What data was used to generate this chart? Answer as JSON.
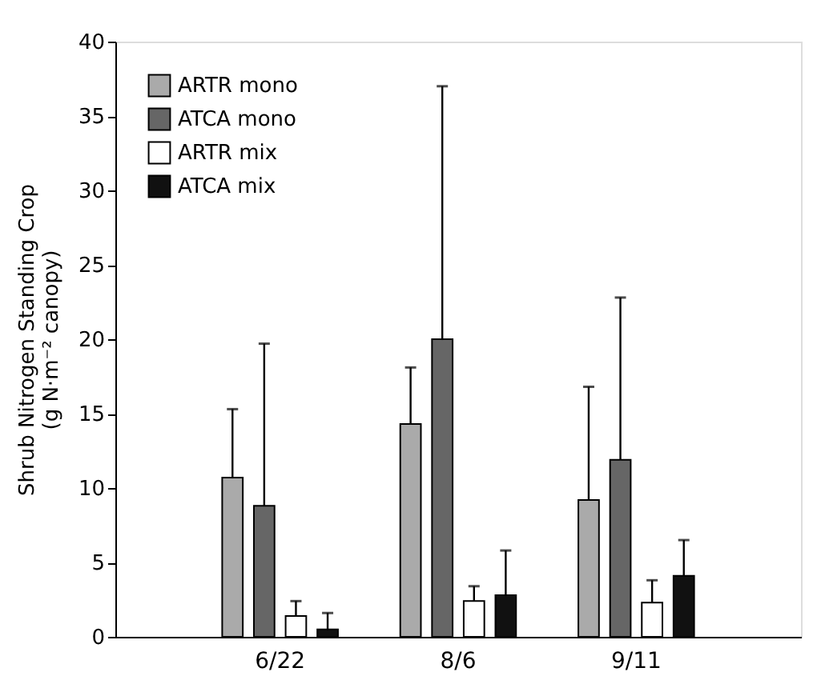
{
  "chart_data": {
    "type": "bar",
    "ylabel": "Shrub Nitrogen Standing Crop\n(g N·m⁻² canopy)",
    "categories": [
      "6/22",
      "8/6",
      "9/11"
    ],
    "series": [
      {
        "name": "ARTR mono",
        "color": "#aaaaaa",
        "values": [
          10.7,
          14.3,
          9.2
        ],
        "errors": [
          [
            10.7,
            15.3
          ],
          [
            14.3,
            18.1
          ],
          [
            9.2,
            16.8
          ]
        ]
      },
      {
        "name": "ATCA mono",
        "color": "#666666",
        "values": [
          8.8,
          20.0,
          11.9
        ],
        "errors": [
          [
            8.8,
            19.7
          ],
          [
            20.0,
            37.0
          ],
          [
            11.9,
            22.8
          ]
        ]
      },
      {
        "name": "ARTR mix",
        "color": "#ffffff",
        "values": [
          1.4,
          2.4,
          2.3
        ],
        "errors": [
          [
            1.4,
            2.4
          ],
          [
            2.4,
            3.4
          ],
          [
            2.3,
            3.8
          ]
        ]
      },
      {
        "name": "ATCA mix",
        "color": "#111111",
        "values": [
          0.5,
          2.8,
          4.1
        ],
        "errors": [
          [
            0.5,
            1.6
          ],
          [
            2.8,
            5.8
          ],
          [
            4.1,
            6.5
          ]
        ]
      }
    ],
    "ylim": [
      0,
      40
    ],
    "yticks": [
      0,
      5,
      10,
      15,
      20,
      25,
      30,
      35,
      40
    ],
    "grid": false,
    "legend": "top left"
  }
}
